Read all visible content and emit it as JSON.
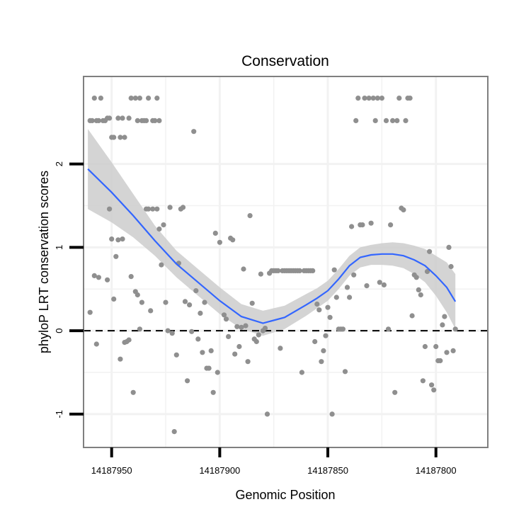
{
  "chart_data": {
    "type": "scatter",
    "title": "Conservation",
    "xlabel": "Genomic Position",
    "ylabel": "phyloP LRT conservation scores",
    "x_reversed": true,
    "xlim": [
      14187963,
      14187776
    ],
    "ylim": [
      -1.4,
      3.05
    ],
    "x_ticks": [
      14187950,
      14187900,
      14187850,
      14187800
    ],
    "x_tick_labels": [
      "14187950",
      "14187900",
      "14187850",
      "14187800"
    ],
    "y_ticks": [
      -1,
      0,
      1,
      2
    ],
    "y_tick_labels": [
      "-1",
      "0",
      "1",
      "2"
    ],
    "reference_line": 0,
    "colors": {
      "points": "#8f8f8f",
      "smooth": "#3366ff",
      "band": "#cccccc",
      "border": "#7f7f7f",
      "grid": "#f2f2f2"
    },
    "points": [
      [
        14187960,
        2.52
      ],
      [
        14187959,
        2.52
      ],
      [
        14187958,
        2.79
      ],
      [
        14187957,
        2.52
      ],
      [
        14187956,
        2.52
      ],
      [
        14187955,
        2.79
      ],
      [
        14187954,
        2.52
      ],
      [
        14187953,
        2.52
      ],
      [
        14187952,
        2.55
      ],
      [
        14187951,
        2.55
      ],
      [
        14187950,
        2.32
      ],
      [
        14187949,
        2.32
      ],
      [
        14187947,
        2.55
      ],
      [
        14187946,
        2.32
      ],
      [
        14187945,
        2.55
      ],
      [
        14187944,
        2.32
      ],
      [
        14187942,
        2.55
      ],
      [
        14187941,
        2.79
      ],
      [
        14187939,
        2.79
      ],
      [
        14187938,
        2.52
      ],
      [
        14187937,
        2.79
      ],
      [
        14187936,
        2.52
      ],
      [
        14187935,
        2.52
      ],
      [
        14187934,
        2.52
      ],
      [
        14187933,
        2.79
      ],
      [
        14187931,
        2.52
      ],
      [
        14187930,
        2.52
      ],
      [
        14187929,
        2.79
      ],
      [
        14187928,
        2.52
      ],
      [
        14187960,
        0.22
      ],
      [
        14187958,
        0.66
      ],
      [
        14187957,
        -0.16
      ],
      [
        14187956,
        0.64
      ],
      [
        14187952,
        0.61
      ],
      [
        14187951,
        1.46
      ],
      [
        14187950,
        1.1
      ],
      [
        14187949,
        0.38
      ],
      [
        14187948,
        0.89
      ],
      [
        14187947,
        1.09
      ],
      [
        14187946,
        -0.34
      ],
      [
        14187945,
        1.1
      ],
      [
        14187944,
        -0.14
      ],
      [
        14187943,
        -0.13
      ],
      [
        14187942,
        -0.11
      ],
      [
        14187941,
        0.65
      ],
      [
        14187940,
        -0.74
      ],
      [
        14187939,
        0.47
      ],
      [
        14187938,
        0.43
      ],
      [
        14187937,
        0.02
      ],
      [
        14187936,
        0.34
      ],
      [
        14187934,
        1.46
      ],
      [
        14187933,
        1.46
      ],
      [
        14187932,
        0.24
      ],
      [
        14187931,
        1.46
      ],
      [
        14187929,
        1.46
      ],
      [
        14187928,
        1.22
      ],
      [
        14187927,
        0.79
      ],
      [
        14187926,
        1.27
      ],
      [
        14187925,
        0.34
      ],
      [
        14187924,
        0.0
      ],
      [
        14187923,
        1.48
      ],
      [
        14187922,
        -0.03
      ],
      [
        14187921,
        -1.21
      ],
      [
        14187920,
        -0.29
      ],
      [
        14187919,
        0.81
      ],
      [
        14187918,
        1.46
      ],
      [
        14187917,
        1.48
      ],
      [
        14187916,
        0.35
      ],
      [
        14187915,
        -0.6
      ],
      [
        14187914,
        0.31
      ],
      [
        14187913,
        -0.01
      ],
      [
        14187912,
        2.39
      ],
      [
        14187911,
        0.48
      ],
      [
        14187910,
        -0.1
      ],
      [
        14187909,
        0.21
      ],
      [
        14187908,
        -0.26
      ],
      [
        14187907,
        0.34
      ],
      [
        14187906,
        -0.45
      ],
      [
        14187905,
        -0.45
      ],
      [
        14187904,
        -0.24
      ],
      [
        14187903,
        -0.74
      ],
      [
        14187902,
        1.17
      ],
      [
        14187901,
        -0.5
      ],
      [
        14187900,
        1.06
      ],
      [
        14187898,
        0.19
      ],
      [
        14187897,
        0.14
      ],
      [
        14187896,
        -0.07
      ],
      [
        14187895,
        1.11
      ],
      [
        14187894,
        1.09
      ],
      [
        14187893,
        -0.28
      ],
      [
        14187892,
        0.05
      ],
      [
        14187891,
        -0.19
      ],
      [
        14187890,
        0.04
      ],
      [
        14187889,
        0.74
      ],
      [
        14187888,
        0.06
      ],
      [
        14187887,
        -0.37
      ],
      [
        14187886,
        1.38
      ],
      [
        14187885,
        0.33
      ],
      [
        14187884,
        -0.1
      ],
      [
        14187883,
        -0.13
      ],
      [
        14187882,
        -0.05
      ],
      [
        14187881,
        0.68
      ],
      [
        14187880,
        0.0
      ],
      [
        14187879,
        0.03
      ],
      [
        14187878,
        -1.0
      ],
      [
        14187877,
        0.69
      ],
      [
        14187876,
        0.72
      ],
      [
        14187875,
        0.72
      ],
      [
        14187874,
        0.72
      ],
      [
        14187873,
        0.72
      ],
      [
        14187872,
        -0.21
      ],
      [
        14187871,
        0.72
      ],
      [
        14187870,
        0.72
      ],
      [
        14187869,
        0.72
      ],
      [
        14187868,
        0.72
      ],
      [
        14187867,
        0.72
      ],
      [
        14187866,
        0.72
      ],
      [
        14187865,
        0.72
      ],
      [
        14187864,
        0.72
      ],
      [
        14187863,
        0.72
      ],
      [
        14187862,
        -0.5
      ],
      [
        14187861,
        0.72
      ],
      [
        14187860,
        0.72
      ],
      [
        14187859,
        0.72
      ],
      [
        14187858,
        0.72
      ],
      [
        14187857,
        0.72
      ],
      [
        14187856,
        -0.13
      ],
      [
        14187855,
        0.32
      ],
      [
        14187854,
        0.25
      ],
      [
        14187853,
        -0.37
      ],
      [
        14187852,
        -0.24
      ],
      [
        14187851,
        -0.06
      ],
      [
        14187850,
        0.28
      ],
      [
        14187849,
        0.16
      ],
      [
        14187848,
        -1.0
      ],
      [
        14187847,
        0.73
      ],
      [
        14187846,
        0.4
      ],
      [
        14187845,
        0.02
      ],
      [
        14187844,
        0.02
      ],
      [
        14187843,
        0.02
      ],
      [
        14187842,
        -0.49
      ],
      [
        14187841,
        0.52
      ],
      [
        14187840,
        0.4
      ],
      [
        14187839,
        1.25
      ],
      [
        14187838,
        0.67
      ],
      [
        14187837,
        2.52
      ],
      [
        14187836,
        2.79
      ],
      [
        14187835,
        1.27
      ],
      [
        14187834,
        1.27
      ],
      [
        14187833,
        2.79
      ],
      [
        14187832,
        0.54
      ],
      [
        14187831,
        2.79
      ],
      [
        14187830,
        1.29
      ],
      [
        14187829,
        2.79
      ],
      [
        14187828,
        2.52
      ],
      [
        14187827,
        2.79
      ],
      [
        14187826,
        0.58
      ],
      [
        14187825,
        2.79
      ],
      [
        14187824,
        0.55
      ],
      [
        14187823,
        2.52
      ],
      [
        14187822,
        0.02
      ],
      [
        14187821,
        1.27
      ],
      [
        14187820,
        2.52
      ],
      [
        14187819,
        -0.74
      ],
      [
        14187818,
        2.52
      ],
      [
        14187817,
        2.79
      ],
      [
        14187816,
        1.47
      ],
      [
        14187815,
        1.45
      ],
      [
        14187814,
        2.52
      ],
      [
        14187813,
        2.79
      ],
      [
        14187812,
        2.79
      ],
      [
        14187811,
        0.18
      ],
      [
        14187810,
        0.67
      ],
      [
        14187809,
        0.64
      ],
      [
        14187808,
        0.49
      ],
      [
        14187807,
        0.43
      ],
      [
        14187806,
        -0.6
      ],
      [
        14187805,
        -0.19
      ],
      [
        14187804,
        0.71
      ],
      [
        14187803,
        0.95
      ],
      [
        14187802,
        -0.65
      ],
      [
        14187801,
        -0.71
      ],
      [
        14187800,
        -0.19
      ],
      [
        14187799,
        -0.36
      ],
      [
        14187798,
        -0.36
      ],
      [
        14187797,
        0.07
      ],
      [
        14187796,
        0.17
      ],
      [
        14187795,
        -0.26
      ],
      [
        14187794,
        1.0
      ],
      [
        14187793,
        0.77
      ],
      [
        14187792,
        -0.24
      ],
      [
        14187791,
        0.02
      ]
    ],
    "smooth": {
      "x": [
        14187961,
        14187950,
        14187940,
        14187930,
        14187920,
        14187910,
        14187900,
        14187890,
        14187880,
        14187870,
        14187860,
        14187855,
        14187850,
        14187845,
        14187840,
        14187835,
        14187830,
        14187825,
        14187820,
        14187815,
        14187810,
        14187805,
        14187800,
        14187795,
        14187791
      ],
      "y": [
        1.94,
        1.66,
        1.38,
        1.08,
        0.8,
        0.58,
        0.36,
        0.17,
        0.09,
        0.16,
        0.31,
        0.39,
        0.48,
        0.62,
        0.78,
        0.88,
        0.91,
        0.92,
        0.92,
        0.9,
        0.85,
        0.78,
        0.66,
        0.52,
        0.35
      ],
      "lower": [
        1.46,
        1.3,
        1.12,
        0.9,
        0.64,
        0.42,
        0.2,
        0.02,
        -0.06,
        0.02,
        0.18,
        0.27,
        0.36,
        0.5,
        0.66,
        0.76,
        0.79,
        0.79,
        0.78,
        0.75,
        0.68,
        0.58,
        0.42,
        0.22,
        0.02
      ],
      "upper": [
        2.42,
        2.02,
        1.64,
        1.26,
        0.96,
        0.74,
        0.52,
        0.32,
        0.24,
        0.3,
        0.44,
        0.51,
        0.6,
        0.74,
        0.9,
        1.0,
        1.03,
        1.05,
        1.06,
        1.05,
        1.02,
        0.98,
        0.9,
        0.82,
        0.68
      ]
    }
  }
}
